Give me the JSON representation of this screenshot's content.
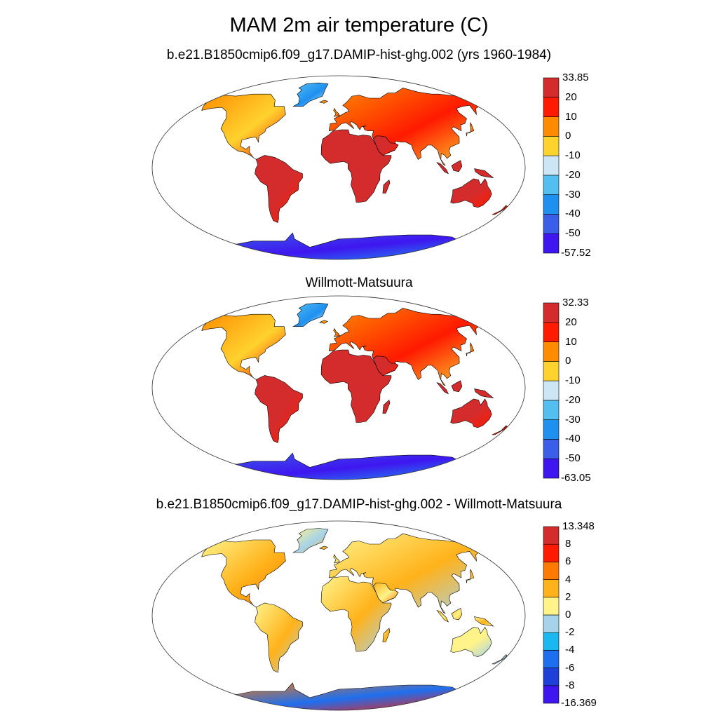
{
  "figure": {
    "title": "MAM 2m air temperature (C)"
  },
  "panels": [
    {
      "title": "b.e21.B1850cmip6.f09_g17.DAMIP-hist-ghg.002 (yrs 1960-1984)",
      "colorbar": {
        "colors": [
          "#3f16f0",
          "#3a5ee8",
          "#1e90f0",
          "#52bff0",
          "#cce6f5",
          "#ffd22e",
          "#ff8c00",
          "#ff1a00",
          "#d42c2c"
        ],
        "labels": [
          "33.85",
          "20",
          "10",
          "0",
          "-10",
          "-20",
          "-30",
          "-40",
          "-50",
          "-57.52"
        ]
      }
    },
    {
      "title": "Willmott-Matsuura",
      "colorbar": {
        "colors": [
          "#3f16f0",
          "#3a5ee8",
          "#1e90f0",
          "#52bff0",
          "#cce6f5",
          "#ffd22e",
          "#ff8c00",
          "#ff1a00",
          "#d42c2c"
        ],
        "labels": [
          "32.33",
          "20",
          "10",
          "0",
          "-10",
          "-20",
          "-30",
          "-40",
          "-50",
          "-63.05"
        ]
      }
    },
    {
      "title": "b.e21.B1850cmip6.f09_g17.DAMIP-hist-ghg.002 - Willmott-Matsuura",
      "colorbar": {
        "colors": [
          "#3f16f0",
          "#1f3fd9",
          "#1e6ff0",
          "#1ab8f0",
          "#a6d3ea",
          "#fff38a",
          "#ffb21a",
          "#ff7a00",
          "#ff1a00",
          "#d42c2c"
        ],
        "labels": [
          "13.348",
          "8",
          "6",
          "4",
          "2",
          "0",
          "-2",
          "-4",
          "-6",
          "-8",
          "-16.369"
        ]
      }
    }
  ]
}
